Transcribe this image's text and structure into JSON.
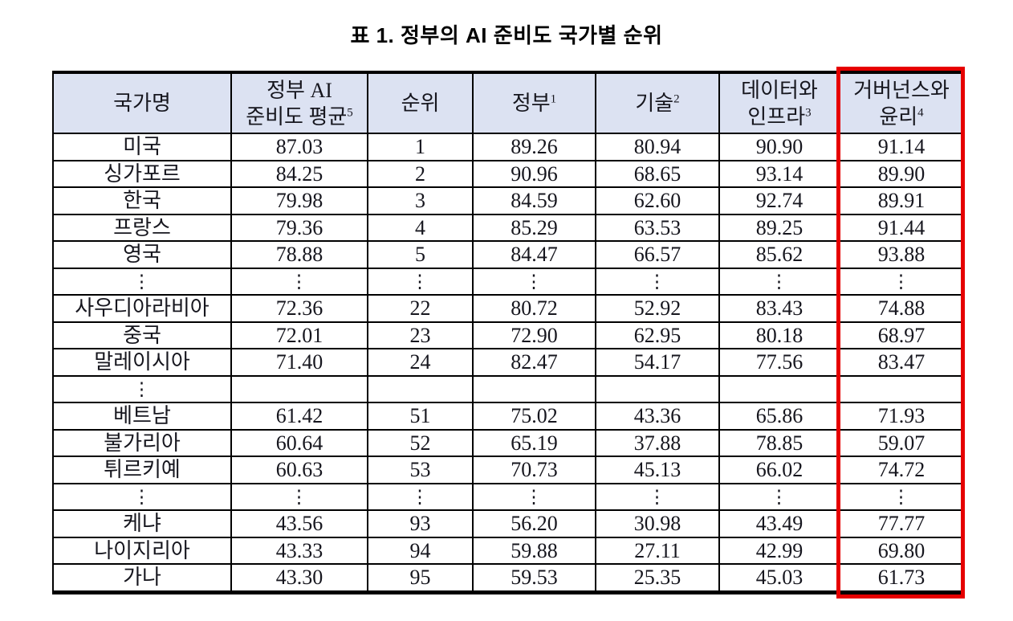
{
  "title": "표 1. 정부의 AI 준비도 국가별 순위",
  "colors": {
    "header_bg": "#dce2f2",
    "table_border": "#000000",
    "highlight_border": "#e60000",
    "text": "#16161e"
  },
  "table": {
    "ellipsis_char": "⋮",
    "header": {
      "country": "국가명",
      "avg_line1": "정부 AI",
      "avg_line2": "준비도 평균",
      "avg_sup": "5",
      "rank": "순위",
      "gov": "정부",
      "gov_sup": "1",
      "tech": "기술",
      "tech_sup": "2",
      "infra_line1": "데이터와",
      "infra_line2": "인프라",
      "infra_sup": "3",
      "ethics_line1": "거버넌스와",
      "ethics_line2": "윤리",
      "ethics_sup": "4"
    },
    "rows": [
      {
        "type": "data",
        "country": "미국",
        "avg": "87.03",
        "rank": "1",
        "gov": "89.26",
        "tech": "80.94",
        "infra": "90.90",
        "ethics": "91.14"
      },
      {
        "type": "data",
        "country": "싱가포르",
        "avg": "84.25",
        "rank": "2",
        "gov": "90.96",
        "tech": "68.65",
        "infra": "93.14",
        "ethics": "89.90"
      },
      {
        "type": "data",
        "country": "한국",
        "avg": "79.98",
        "rank": "3",
        "gov": "84.59",
        "tech": "62.60",
        "infra": "92.74",
        "ethics": "89.91"
      },
      {
        "type": "data",
        "country": "프랑스",
        "avg": "79.36",
        "rank": "4",
        "gov": "85.29",
        "tech": "63.53",
        "infra": "89.25",
        "ethics": "91.44"
      },
      {
        "type": "data",
        "country": "영국",
        "avg": "78.88",
        "rank": "5",
        "gov": "84.47",
        "tech": "66.57",
        "infra": "85.62",
        "ethics": "93.88"
      },
      {
        "type": "ellipsis",
        "scope": "all"
      },
      {
        "type": "data",
        "country": "사우디아라비아",
        "avg": "72.36",
        "rank": "22",
        "gov": "80.72",
        "tech": "52.92",
        "infra": "83.43",
        "ethics": "74.88"
      },
      {
        "type": "data",
        "country": "중국",
        "avg": "72.01",
        "rank": "23",
        "gov": "72.90",
        "tech": "62.95",
        "infra": "80.18",
        "ethics": "68.97"
      },
      {
        "type": "data",
        "country": "말레이시아",
        "avg": "71.40",
        "rank": "24",
        "gov": "82.47",
        "tech": "54.17",
        "infra": "77.56",
        "ethics": "83.47"
      },
      {
        "type": "ellipsis",
        "scope": "first"
      },
      {
        "type": "data",
        "country": "베트남",
        "avg": "61.42",
        "rank": "51",
        "gov": "75.02",
        "tech": "43.36",
        "infra": "65.86",
        "ethics": "71.93"
      },
      {
        "type": "data",
        "country": "불가리아",
        "avg": "60.64",
        "rank": "52",
        "gov": "65.19",
        "tech": "37.88",
        "infra": "78.85",
        "ethics": "59.07"
      },
      {
        "type": "data",
        "country": "튀르키예",
        "avg": "60.63",
        "rank": "53",
        "gov": "70.73",
        "tech": "45.13",
        "infra": "66.02",
        "ethics": "74.72"
      },
      {
        "type": "ellipsis",
        "scope": "all"
      },
      {
        "type": "data",
        "country": "케냐",
        "avg": "43.56",
        "rank": "93",
        "gov": "56.20",
        "tech": "30.98",
        "infra": "43.49",
        "ethics": "77.77"
      },
      {
        "type": "data",
        "country": "나이지리아",
        "avg": "43.33",
        "rank": "94",
        "gov": "59.88",
        "tech": "27.11",
        "infra": "42.99",
        "ethics": "69.80"
      },
      {
        "type": "data",
        "country": "가나",
        "avg": "43.30",
        "rank": "95",
        "gov": "59.53",
        "tech": "25.35",
        "infra": "45.03",
        "ethics": "61.73"
      }
    ]
  }
}
